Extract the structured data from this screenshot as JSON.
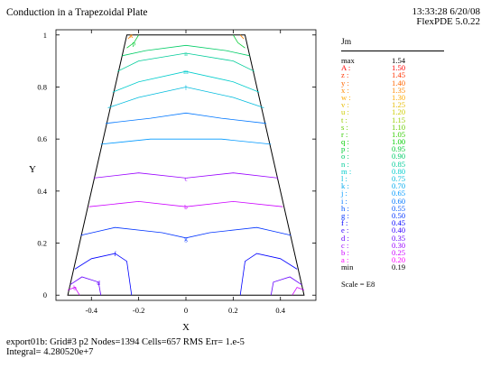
{
  "header": {
    "title": "Conduction in a Trapezoidal Plate",
    "time_date": "13:33:28 6/20/08",
    "software": "FlexPDE 5.0.22"
  },
  "footer": {
    "line1": "export01b:  Grid#3  p2  Nodes=1394 Cells=657 RMS Err= 1.e-5",
    "line2": "Integral=  4.280520e+7"
  },
  "legend": {
    "title": "Jm",
    "max_key": "max",
    "max_value": "1.54",
    "min_key": "min",
    "min_value": "0.19",
    "scale": "Scale = E8",
    "levels": [
      {
        "key": "A :",
        "value": "1.50",
        "color": "#ff0000"
      },
      {
        "key": "z :",
        "value": "1.45",
        "color": "#ff3300"
      },
      {
        "key": "y :",
        "value": "1.40",
        "color": "#ff6600"
      },
      {
        "key": "x :",
        "value": "1.35",
        "color": "#ff8800"
      },
      {
        "key": "w :",
        "value": "1.30",
        "color": "#ffaa00"
      },
      {
        "key": "v :",
        "value": "1.25",
        "color": "#e6bb00"
      },
      {
        "key": "u :",
        "value": "1.20",
        "color": "#cccc00"
      },
      {
        "key": "t :",
        "value": "1.15",
        "color": "#99cc00"
      },
      {
        "key": "s :",
        "value": "1.10",
        "color": "#66cc00"
      },
      {
        "key": "r :",
        "value": "1.05",
        "color": "#33cc00"
      },
      {
        "key": "q :",
        "value": "1.00",
        "color": "#00cc00"
      },
      {
        "key": "p :",
        "value": "0.95",
        "color": "#00cc33"
      },
      {
        "key": "o :",
        "value": "0.90",
        "color": "#00cc66"
      },
      {
        "key": "n :",
        "value": "0.85",
        "color": "#00cc99"
      },
      {
        "key": "m :",
        "value": "0.80",
        "color": "#00cccc"
      },
      {
        "key": "l :",
        "value": "0.75",
        "color": "#00bbdd"
      },
      {
        "key": "k :",
        "value": "0.70",
        "color": "#00aaee"
      },
      {
        "key": "j :",
        "value": "0.65",
        "color": "#0099ff"
      },
      {
        "key": "i :",
        "value": "0.60",
        "color": "#0077ff"
      },
      {
        "key": "h :",
        "value": "0.55",
        "color": "#0055ff"
      },
      {
        "key": "g :",
        "value": "0.50",
        "color": "#0033ff"
      },
      {
        "key": "f :",
        "value": "0.45",
        "color": "#0000ff"
      },
      {
        "key": "e :",
        "value": "0.40",
        "color": "#3300ff"
      },
      {
        "key": "d :",
        "value": "0.35",
        "color": "#6600ff"
      },
      {
        "key": "c :",
        "value": "0.30",
        "color": "#9900ff"
      },
      {
        "key": "b :",
        "value": "0.25",
        "color": "#cc00ff"
      },
      {
        "key": "a :",
        "value": "0.20",
        "color": "#ff00ff"
      }
    ]
  },
  "chart_data": {
    "type": "contour",
    "xlabel": "X",
    "ylabel": "Y",
    "xlim": [
      -0.55,
      0.55
    ],
    "ylim": [
      -0.02,
      1.02
    ],
    "xticks": [
      "-0.4",
      "-0.2",
      "0",
      "0.2",
      "0.4"
    ],
    "yticks": [
      "0",
      "0.2",
      "0.4",
      "0.6",
      "0.8",
      "1"
    ],
    "xtick_values": [
      -0.4,
      -0.2,
      0,
      0.2,
      0.4
    ],
    "ytick_values": [
      0,
      0.2,
      0.4,
      0.6,
      0.8,
      1
    ],
    "domain_vertices": [
      [
        -0.5,
        0
      ],
      [
        0.5,
        0
      ],
      [
        0.25,
        1
      ],
      [
        -0.25,
        1
      ]
    ],
    "contours": [
      {
        "label": "b",
        "color": "#cc00ff",
        "points": [
          [
            -0.41,
            0.34
          ],
          [
            -0.2,
            0.36
          ],
          [
            0,
            0.34
          ],
          [
            0.2,
            0.36
          ],
          [
            0.41,
            0.34
          ]
        ]
      },
      {
        "label": "c",
        "color": "#9900ff",
        "points": [
          [
            -0.39,
            0.45
          ],
          [
            -0.2,
            0.47
          ],
          [
            0,
            0.45
          ],
          [
            0.2,
            0.47
          ],
          [
            0.39,
            0.45
          ]
        ]
      },
      {
        "label": "l",
        "color": "#00bbdd",
        "points": [
          [
            -0.33,
            0.72
          ],
          [
            -0.2,
            0.76
          ],
          [
            0,
            0.8
          ],
          [
            0.2,
            0.76
          ],
          [
            0.33,
            0.72
          ]
        ]
      },
      {
        "label": "m",
        "color": "#00cccc",
        "points": [
          [
            -0.31,
            0.78
          ],
          [
            -0.2,
            0.82
          ],
          [
            0,
            0.86
          ],
          [
            0.2,
            0.82
          ],
          [
            0.31,
            0.78
          ]
        ]
      },
      {
        "label": "n",
        "color": "#00cc99",
        "points": [
          [
            -0.29,
            0.86
          ],
          [
            -0.2,
            0.9
          ],
          [
            0,
            0.93
          ],
          [
            0.2,
            0.9
          ],
          [
            0.29,
            0.86
          ]
        ]
      },
      {
        "label": "",
        "color": "#00cc66",
        "points": [
          [
            -0.27,
            0.92
          ],
          [
            -0.17,
            0.94
          ],
          [
            0,
            0.96
          ],
          [
            0.17,
            0.94
          ],
          [
            0.27,
            0.92
          ]
        ]
      },
      {
        "label": "g",
        "color": "#0033ff",
        "points": [
          [
            -0.445,
            0.23
          ],
          [
            -0.3,
            0.26
          ],
          [
            -0.1,
            0.24
          ],
          [
            0,
            0.22
          ],
          [
            0.1,
            0.24
          ],
          [
            0.3,
            0.26
          ],
          [
            0.445,
            0.23
          ]
        ]
      },
      {
        "label": "",
        "color": "#0099ff",
        "points": [
          [
            -0.36,
            0.58
          ],
          [
            -0.15,
            0.6
          ],
          [
            0,
            0.6
          ],
          [
            0.15,
            0.6
          ],
          [
            0.36,
            0.58
          ]
        ]
      },
      {
        "label": "",
        "color": "#0077ff",
        "points": [
          [
            -0.34,
            0.66
          ],
          [
            -0.15,
            0.68
          ],
          [
            0,
            0.7
          ],
          [
            0.15,
            0.68
          ],
          [
            0.34,
            0.66
          ]
        ]
      },
      {
        "label": "f",
        "color": "#0000ff",
        "points": [
          [
            -0.47,
            0.1
          ],
          [
            -0.4,
            0.14
          ],
          [
            -0.3,
            0.16
          ],
          [
            -0.25,
            0.13
          ],
          [
            -0.23,
            0.0
          ]
        ]
      },
      {
        "label": "",
        "color": "#0000ff",
        "points": [
          [
            0.47,
            0.1
          ],
          [
            0.4,
            0.14
          ],
          [
            0.3,
            0.16
          ],
          [
            0.25,
            0.13
          ],
          [
            0.23,
            0.0
          ]
        ]
      },
      {
        "label": "d",
        "color": "#6600ff",
        "points": [
          [
            -0.49,
            0.04
          ],
          [
            -0.44,
            0.07
          ],
          [
            -0.37,
            0.05
          ],
          [
            -0.36,
            0.0
          ]
        ]
      },
      {
        "label": "",
        "color": "#6600ff",
        "points": [
          [
            0.49,
            0.04
          ],
          [
            0.44,
            0.07
          ],
          [
            0.37,
            0.05
          ],
          [
            0.36,
            0.0
          ]
        ]
      },
      {
        "label": "b",
        "color": "#cc00ff",
        "points": [
          [
            -0.5,
            0.02
          ],
          [
            -0.47,
            0.03
          ],
          [
            -0.45,
            0.0
          ]
        ]
      },
      {
        "label": "",
        "color": "#cc00ff",
        "points": [
          [
            0.5,
            0.02
          ],
          [
            0.47,
            0.03
          ],
          [
            0.45,
            0.0
          ]
        ]
      },
      {
        "label": "p",
        "color": "#00cc33",
        "points": [
          [
            -0.25,
            0.95
          ],
          [
            -0.22,
            0.97
          ],
          [
            -0.2,
            1.0
          ]
        ]
      },
      {
        "label": "",
        "color": "#00cc33",
        "points": [
          [
            0.25,
            0.95
          ],
          [
            0.22,
            0.97
          ],
          [
            0.2,
            1.0
          ]
        ]
      },
      {
        "label": "x",
        "color": "#ff8800",
        "points": [
          [
            -0.245,
            0.985
          ],
          [
            -0.23,
            1.0
          ]
        ]
      },
      {
        "label": "",
        "color": "#ff8800",
        "points": [
          [
            0.245,
            0.985
          ],
          [
            0.23,
            1.0
          ]
        ]
      }
    ]
  }
}
